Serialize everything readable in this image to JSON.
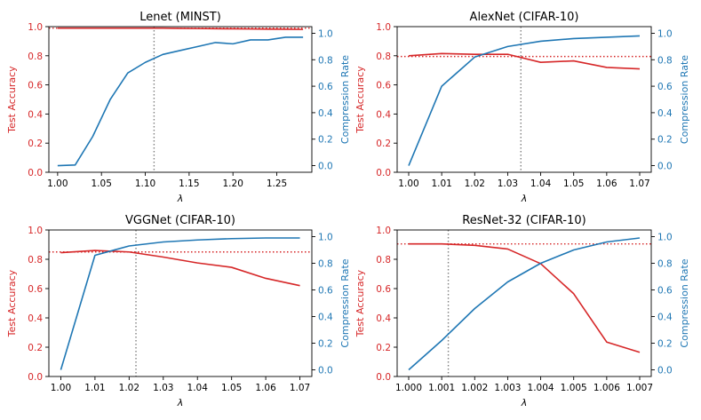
{
  "figure": {
    "colors": {
      "accuracy": "#d62728",
      "compression": "#1f77b4",
      "vline": "#808080",
      "axis": "#000000"
    }
  },
  "chart_data": [
    {
      "type": "line",
      "title": "Lenet (MINST)",
      "xlabel": "λ",
      "ylabel_left": "Test Accuracy",
      "ylabel_right": "Compression Rate",
      "xlim": [
        0.99,
        1.29
      ],
      "ylim_left": [
        0.0,
        1.0
      ],
      "ylim_right": [
        -0.05,
        1.05
      ],
      "xticks": [
        1.0,
        1.05,
        1.1,
        1.15,
        1.2,
        1.25
      ],
      "xtick_labels": [
        "1.00",
        "1.05",
        "1.10",
        "1.15",
        "1.20",
        "1.25"
      ],
      "yticks_left": [
        0.0,
        0.2,
        0.4,
        0.6,
        0.8,
        1.0
      ],
      "yticks_left_labels": [
        "0.0",
        "0.2",
        "0.4",
        "0.6",
        "0.8",
        "1.0"
      ],
      "yticks_right": [
        0.0,
        0.2,
        0.4,
        0.6,
        0.8,
        1.0
      ],
      "yticks_right_labels": [
        "0.0",
        "0.2",
        "0.4",
        "0.6",
        "0.8",
        "1.0"
      ],
      "baseline_accuracy": 0.99,
      "selected_lambda": 1.11,
      "series": [
        {
          "name": "Test Accuracy",
          "axis": "left",
          "x": [
            1.0,
            1.02,
            1.04,
            1.06,
            1.08,
            1.1,
            1.12,
            1.14,
            1.16,
            1.18,
            1.2,
            1.22,
            1.24,
            1.26,
            1.28
          ],
          "values": [
            0.99,
            0.99,
            0.99,
            0.99,
            0.99,
            0.99,
            0.99,
            0.988,
            0.987,
            0.986,
            0.985,
            0.984,
            0.983,
            0.982,
            0.981
          ]
        },
        {
          "name": "Compression Rate",
          "axis": "right",
          "x": [
            1.0,
            1.02,
            1.04,
            1.06,
            1.08,
            1.1,
            1.12,
            1.14,
            1.16,
            1.18,
            1.2,
            1.22,
            1.24,
            1.26,
            1.28
          ],
          "values": [
            0.0,
            0.005,
            0.22,
            0.5,
            0.7,
            0.78,
            0.84,
            0.87,
            0.9,
            0.93,
            0.92,
            0.95,
            0.95,
            0.97,
            0.97
          ]
        }
      ]
    },
    {
      "type": "line",
      "title": "AlexNet (CIFAR-10)",
      "xlabel": "λ",
      "ylabel_left": "Test Accuracy",
      "ylabel_right": "Compression Rate",
      "xlim": [
        0.9965,
        1.0735
      ],
      "ylim_left": [
        0.0,
        1.0
      ],
      "ylim_right": [
        -0.05,
        1.05
      ],
      "xticks": [
        1.0,
        1.01,
        1.02,
        1.03,
        1.04,
        1.05,
        1.06,
        1.07
      ],
      "xtick_labels": [
        "1.00",
        "1.01",
        "1.02",
        "1.03",
        "1.04",
        "1.05",
        "1.06",
        "1.07"
      ],
      "yticks_left": [
        0.0,
        0.2,
        0.4,
        0.6,
        0.8,
        1.0
      ],
      "yticks_left_labels": [
        "0.0",
        "0.2",
        "0.4",
        "0.6",
        "0.8",
        "1.0"
      ],
      "yticks_right": [
        0.0,
        0.2,
        0.4,
        0.6,
        0.8,
        1.0
      ],
      "yticks_right_labels": [
        "0.0",
        "0.2",
        "0.4",
        "0.6",
        "0.8",
        "1.0"
      ],
      "baseline_accuracy": 0.795,
      "selected_lambda": 1.034,
      "series": [
        {
          "name": "Test Accuracy",
          "axis": "left",
          "x": [
            1.0,
            1.01,
            1.02,
            1.03,
            1.04,
            1.05,
            1.06,
            1.07
          ],
          "values": [
            0.8,
            0.815,
            0.81,
            0.81,
            0.755,
            0.765,
            0.72,
            0.71
          ]
        },
        {
          "name": "Compression Rate",
          "axis": "right",
          "x": [
            1.0,
            1.01,
            1.02,
            1.03,
            1.04,
            1.05,
            1.06,
            1.07
          ],
          "values": [
            0.0,
            0.6,
            0.82,
            0.9,
            0.94,
            0.96,
            0.97,
            0.98
          ]
        }
      ]
    },
    {
      "type": "line",
      "title": "VGGNet (CIFAR-10)",
      "xlabel": "λ",
      "ylabel_left": "Test Accuracy",
      "ylabel_right": "Compression Rate",
      "xlim": [
        0.9965,
        1.0735
      ],
      "ylim_left": [
        0.0,
        1.0
      ],
      "ylim_right": [
        -0.05,
        1.05
      ],
      "xticks": [
        1.0,
        1.01,
        1.02,
        1.03,
        1.04,
        1.05,
        1.06,
        1.07
      ],
      "xtick_labels": [
        "1.00",
        "1.01",
        "1.02",
        "1.03",
        "1.04",
        "1.05",
        "1.06",
        "1.07"
      ],
      "yticks_left": [
        0.0,
        0.2,
        0.4,
        0.6,
        0.8,
        1.0
      ],
      "yticks_left_labels": [
        "0.0",
        "0.2",
        "0.4",
        "0.6",
        "0.8",
        "1.0"
      ],
      "yticks_right": [
        0.0,
        0.2,
        0.4,
        0.6,
        0.8,
        1.0
      ],
      "yticks_right_labels": [
        "0.0",
        "0.2",
        "0.4",
        "0.6",
        "0.8",
        "1.0"
      ],
      "baseline_accuracy": 0.85,
      "selected_lambda": 1.022,
      "series": [
        {
          "name": "Test Accuracy",
          "axis": "left",
          "x": [
            1.0,
            1.01,
            1.02,
            1.03,
            1.04,
            1.05,
            1.06,
            1.07
          ],
          "values": [
            0.845,
            0.86,
            0.85,
            0.815,
            0.775,
            0.745,
            0.67,
            0.62
          ]
        },
        {
          "name": "Compression Rate",
          "axis": "right",
          "x": [
            1.0,
            1.01,
            1.02,
            1.03,
            1.04,
            1.05,
            1.06,
            1.07
          ],
          "values": [
            0.0,
            0.86,
            0.93,
            0.96,
            0.975,
            0.985,
            0.99,
            0.99
          ]
        }
      ]
    },
    {
      "type": "line",
      "title": "ResNet-32 (CIFAR-10)",
      "xlabel": "λ",
      "ylabel_left": "Test Accuracy",
      "ylabel_right": "Compression Rate",
      "xlim": [
        0.99965,
        1.00735
      ],
      "ylim_left": [
        0.0,
        1.0
      ],
      "ylim_right": [
        -0.05,
        1.05
      ],
      "xticks": [
        1.0,
        1.001,
        1.002,
        1.003,
        1.004,
        1.005,
        1.006,
        1.007
      ],
      "xtick_labels": [
        "1.000",
        "1.001",
        "1.002",
        "1.003",
        "1.004",
        "1.005",
        "1.006",
        "1.007"
      ],
      "yticks_left": [
        0.0,
        0.2,
        0.4,
        0.6,
        0.8,
        1.0
      ],
      "yticks_left_labels": [
        "0.0",
        "0.2",
        "0.4",
        "0.6",
        "0.8",
        "1.0"
      ],
      "yticks_right": [
        0.0,
        0.2,
        0.4,
        0.6,
        0.8,
        1.0
      ],
      "yticks_right_labels": [
        "0.0",
        "0.2",
        "0.4",
        "0.6",
        "0.8",
        "1.0"
      ],
      "baseline_accuracy": 0.905,
      "selected_lambda": 1.0012,
      "series": [
        {
          "name": "Test Accuracy",
          "axis": "left",
          "x": [
            1.0,
            1.001,
            1.002,
            1.003,
            1.004,
            1.005,
            1.006,
            1.007
          ],
          "values": [
            0.905,
            0.905,
            0.895,
            0.87,
            0.77,
            0.565,
            0.235,
            0.165
          ]
        },
        {
          "name": "Compression Rate",
          "axis": "right",
          "x": [
            1.0,
            1.001,
            1.002,
            1.003,
            1.004,
            1.005,
            1.006,
            1.007
          ],
          "values": [
            0.0,
            0.22,
            0.46,
            0.66,
            0.8,
            0.9,
            0.96,
            0.99
          ]
        }
      ]
    }
  ]
}
